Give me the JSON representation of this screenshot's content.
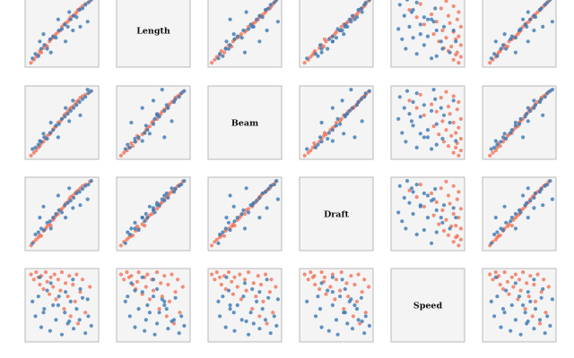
{
  "chart_data": {
    "type": "scatter-matrix",
    "title": "",
    "variables": [
      "",
      "Length",
      "Beam",
      "Draft",
      "Speed",
      ""
    ],
    "legend": "none",
    "grid": false,
    "colors": {
      "series_a": "#f26b4f",
      "series_b": "#3a78b4",
      "panel_fill": "#f4f4f4",
      "panel_border": "#b9b9b9"
    },
    "series": [
      {
        "name": "",
        "color": "#f26b4f"
      },
      {
        "name": "",
        "color": "#3a78b4"
      }
    ],
    "records": [
      [
        0.08,
        0.06,
        0.05,
        0.07,
        0.92,
        0.1,
        0
      ],
      [
        0.12,
        0.1,
        0.09,
        0.12,
        0.85,
        0.14,
        0
      ],
      [
        0.15,
        0.14,
        0.12,
        0.15,
        0.95,
        0.18,
        0
      ],
      [
        0.18,
        0.17,
        0.16,
        0.18,
        0.88,
        0.2,
        0
      ],
      [
        0.2,
        0.22,
        0.18,
        0.21,
        0.78,
        0.24,
        0
      ],
      [
        0.22,
        0.2,
        0.22,
        0.2,
        0.9,
        0.22,
        0
      ],
      [
        0.25,
        0.26,
        0.24,
        0.27,
        0.72,
        0.28,
        0
      ],
      [
        0.28,
        0.3,
        0.28,
        0.3,
        0.95,
        0.3,
        0
      ],
      [
        0.3,
        0.28,
        0.32,
        0.33,
        0.82,
        0.34,
        0
      ],
      [
        0.33,
        0.35,
        0.34,
        0.36,
        0.65,
        0.36,
        0
      ],
      [
        0.35,
        0.38,
        0.36,
        0.34,
        0.88,
        0.4,
        0
      ],
      [
        0.38,
        0.4,
        0.4,
        0.42,
        0.75,
        0.42,
        0
      ],
      [
        0.4,
        0.42,
        0.43,
        0.45,
        0.92,
        0.45,
        0
      ],
      [
        0.42,
        0.45,
        0.45,
        0.48,
        0.58,
        0.48,
        0
      ],
      [
        0.45,
        0.48,
        0.5,
        0.5,
        0.85,
        0.5,
        0
      ],
      [
        0.48,
        0.5,
        0.52,
        0.55,
        0.7,
        0.52,
        0
      ],
      [
        0.5,
        0.55,
        0.55,
        0.57,
        0.95,
        0.55,
        0
      ],
      [
        0.53,
        0.58,
        0.6,
        0.6,
        0.45,
        0.58,
        0
      ],
      [
        0.55,
        0.6,
        0.62,
        0.64,
        0.8,
        0.6,
        0
      ],
      [
        0.58,
        0.62,
        0.65,
        0.66,
        0.62,
        0.63,
        0
      ],
      [
        0.6,
        0.65,
        0.68,
        0.7,
        0.9,
        0.65,
        0
      ],
      [
        0.62,
        0.68,
        0.7,
        0.73,
        0.35,
        0.68,
        0
      ],
      [
        0.65,
        0.7,
        0.72,
        0.75,
        0.78,
        0.7,
        0
      ],
      [
        0.68,
        0.72,
        0.75,
        0.78,
        0.55,
        0.72,
        0
      ],
      [
        0.7,
        0.75,
        0.78,
        0.8,
        0.92,
        0.75,
        0
      ],
      [
        0.72,
        0.78,
        0.8,
        0.82,
        0.25,
        0.78,
        0
      ],
      [
        0.75,
        0.8,
        0.84,
        0.85,
        0.68,
        0.8,
        0
      ],
      [
        0.78,
        0.83,
        0.86,
        0.88,
        0.85,
        0.83,
        0
      ],
      [
        0.82,
        0.86,
        0.88,
        0.9,
        0.4,
        0.86,
        0
      ],
      [
        0.88,
        0.9,
        0.92,
        0.94,
        0.75,
        0.9,
        0
      ],
      [
        0.1,
        0.12,
        0.14,
        0.1,
        0.55,
        0.12,
        1
      ],
      [
        0.14,
        0.18,
        0.16,
        0.22,
        0.35,
        0.16,
        1
      ],
      [
        0.18,
        0.15,
        0.2,
        0.25,
        0.62,
        0.2,
        1
      ],
      [
        0.22,
        0.25,
        0.24,
        0.3,
        0.2,
        0.25,
        1
      ],
      [
        0.26,
        0.3,
        0.3,
        0.28,
        0.45,
        0.28,
        1
      ],
      [
        0.3,
        0.25,
        0.28,
        0.38,
        0.7,
        0.32,
        1
      ],
      [
        0.34,
        0.38,
        0.36,
        0.4,
        0.15,
        0.38,
        1
      ],
      [
        0.38,
        0.42,
        0.4,
        0.45,
        0.5,
        0.4,
        1
      ],
      [
        0.42,
        0.4,
        0.46,
        0.5,
        0.3,
        0.45,
        1
      ],
      [
        0.46,
        0.5,
        0.48,
        0.55,
        0.62,
        0.5,
        1
      ],
      [
        0.5,
        0.52,
        0.55,
        0.52,
        0.1,
        0.52,
        1
      ],
      [
        0.54,
        0.58,
        0.58,
        0.62,
        0.4,
        0.58,
        1
      ],
      [
        0.58,
        0.55,
        0.62,
        0.65,
        0.25,
        0.6,
        1
      ],
      [
        0.62,
        0.65,
        0.66,
        0.68,
        0.55,
        0.65,
        1
      ],
      [
        0.66,
        0.7,
        0.7,
        0.72,
        0.18,
        0.7,
        1
      ],
      [
        0.7,
        0.68,
        0.74,
        0.78,
        0.45,
        0.72,
        1
      ],
      [
        0.74,
        0.78,
        0.78,
        0.8,
        0.3,
        0.78,
        1
      ],
      [
        0.78,
        0.8,
        0.82,
        0.84,
        0.6,
        0.8,
        1
      ],
      [
        0.82,
        0.85,
        0.85,
        0.88,
        0.12,
        0.85,
        1
      ],
      [
        0.86,
        0.88,
        0.9,
        0.9,
        0.35,
        0.88,
        1
      ],
      [
        0.9,
        0.92,
        0.93,
        0.95,
        0.22,
        0.92,
        1
      ],
      [
        0.35,
        0.2,
        0.5,
        0.3,
        0.8,
        0.45,
        1
      ],
      [
        0.55,
        0.35,
        0.7,
        0.45,
        0.68,
        0.62,
        1
      ],
      [
        0.25,
        0.45,
        0.35,
        0.6,
        0.4,
        0.3,
        1
      ],
      [
        0.65,
        0.5,
        0.8,
        0.58,
        0.85,
        0.7,
        1
      ],
      [
        0.45,
        0.65,
        0.3,
        0.75,
        0.5,
        0.55,
        1
      ],
      [
        0.75,
        0.55,
        0.6,
        0.62,
        0.72,
        0.82,
        1
      ],
      [
        0.2,
        0.35,
        0.25,
        0.45,
        0.88,
        0.18,
        1
      ],
      [
        0.6,
        0.75,
        0.52,
        0.85,
        0.28,
        0.62,
        1
      ],
      [
        0.85,
        0.62,
        0.95,
        0.7,
        0.58,
        0.95,
        1
      ]
    ]
  }
}
